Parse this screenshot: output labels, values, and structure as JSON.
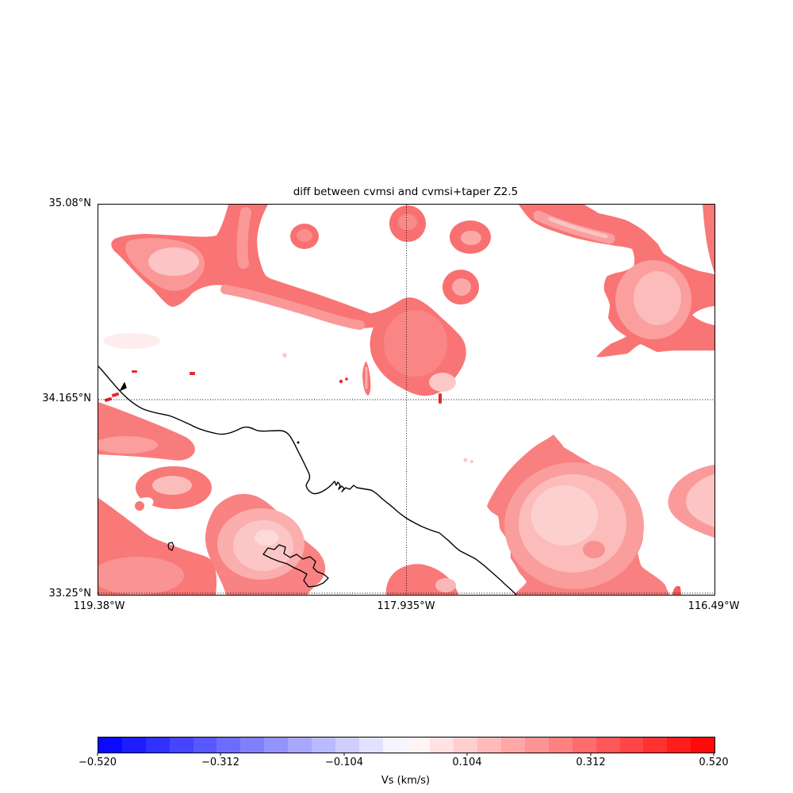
{
  "figure": {
    "title": "diff between cvmsi and cvmsi+taper Z2.5",
    "background_color": "#ffffff"
  },
  "map": {
    "lat_labels": [
      "35.08°N",
      "34.165°N",
      "33.25°N"
    ],
    "lon_labels": [
      "119.38°W",
      "117.935°W",
      "116.49°W"
    ],
    "graticule": {
      "lon_line": "117.935°W",
      "lat_line": "34.165°N",
      "style": "dotted"
    },
    "overlays": [
      "coastline",
      "catalina-island",
      "santa-barbara-island"
    ],
    "coastline_color": "#000000"
  },
  "colorbar": {
    "label": "Vs (km/s)",
    "tick_labels": [
      "−0.520",
      "−0.312",
      "−0.104",
      "0.104",
      "0.312",
      "0.520"
    ],
    "tick_values": [
      -0.52,
      -0.312,
      -0.104,
      0.104,
      0.312,
      0.52
    ],
    "min": -0.52,
    "max": 0.52,
    "n_segments": 26,
    "colormap_name": "bwr (blue-white-red), discrete",
    "colors": [
      "#0a0aff",
      "#1d1dff",
      "#3131ff",
      "#4545ff",
      "#5858ff",
      "#6c6cff",
      "#8080ff",
      "#9393ff",
      "#a7a7ff",
      "#babaff",
      "#ceceff",
      "#e2e2ff",
      "#f5f5ff",
      "#fff5f5",
      "#ffe2e2",
      "#ffcece",
      "#ffbaba",
      "#ffa7a7",
      "#ff9393",
      "#ff8080",
      "#ff6c6c",
      "#ff5858",
      "#ff4545",
      "#ff3131",
      "#ff1d1d",
      "#ff0a0a"
    ]
  },
  "chart_data": {
    "type": "heatmap",
    "subtype": "filled contour map (matplotlib/basemap style)",
    "title": "diff between cvmsi and cvmsi+taper Z2.5",
    "region": "Southern California (Los Angeles basin, Catalina Island, coastline drawn in black)",
    "x_axis": {
      "tick_labels": [
        "119.38°W",
        "117.935°W",
        "116.49°W"
      ],
      "lon_range_deg": [
        -119.38,
        -116.49
      ]
    },
    "y_axis": {
      "tick_labels": [
        "35.08°N",
        "34.165°N",
        "33.25°N"
      ],
      "lat_range_deg": [
        33.25,
        35.08
      ]
    },
    "gridlines": {
      "dotted_meridian_deg": -117.935,
      "dotted_parallel_deg": 34.165,
      "dotted_bottom_parallel_deg": 33.25
    },
    "value_label": "Vs (km/s)",
    "value_range": [
      -0.52,
      0.52
    ],
    "colorbar_ticks": [
      -0.52,
      -0.312,
      -0.104,
      0.104,
      0.312,
      0.52
    ],
    "n_contour_levels": 26,
    "field_summary": "Difference field is zero (white) over most of the domain with only positive (red/pink) anomalies ~+0.05 to +0.4 km/s; no negative (blue) regions visible.",
    "notable_features": [
      {
        "feature": "large lobed anomaly across the northwest quadrant with band rising to the top edge",
        "approx_center_lon": -118.6,
        "approx_center_lat": 34.8,
        "approx_peak_km_s": 0.3,
        "interior_km_s": 0.12
      },
      {
        "feature": "small round anomaly on the 117.935W meridian touching the top edge",
        "approx_center_lon": -117.93,
        "approx_center_lat": 35.0,
        "approx_peak_km_s": 0.3
      },
      {
        "feature": "two stacked small anomalies with pale cores near 117.7W, 34.9-34.7N",
        "approx_peak_km_s": 0.3
      },
      {
        "feature": "large anomaly complex over the northeast corner with white notch and pale interior",
        "approx_center_lon": -116.8,
        "approx_center_lat": 34.75,
        "approx_peak_km_s": 0.3,
        "interior_km_s": 0.12
      },
      {
        "feature": "diagonal band from NW blob to a blob crossing the meridian near 34.3N",
        "approx_peak_km_s": 0.3
      },
      {
        "feature": "coastal wedge at left edge just below 34.165N",
        "approx_peak_km_s": 0.25
      },
      {
        "feature": "ring-shaped blob with pale core near 118.7W, 33.85N",
        "approx_peak_km_s": 0.3,
        "core_km_s": 0.12
      },
      {
        "feature": "large mass in the southwest corner",
        "approx_peak_km_s": 0.3
      },
      {
        "feature": "pale-cored blob enclosing Catalina Island",
        "approx_peak_km_s": 0.3,
        "core_km_s": 0.1
      },
      {
        "feature": "small blob on the bottom edge at the meridian",
        "approx_peak_km_s": 0.3
      },
      {
        "feature": "very large pale-cored anomaly in the southeast exiting the bottom edge",
        "approx_rim_km_s": 0.3,
        "core_km_s": 0.08
      },
      {
        "feature": "pale wedge entering from the right edge near 33.9N",
        "approx_km_s": 0.15
      },
      {
        "feature": "tiny saturated red specks (~0.45 km/s) scattered near the coast and meridian",
        "approx_km_s": 0.45
      }
    ],
    "legend_position": "horizontal colorbar below the map"
  }
}
